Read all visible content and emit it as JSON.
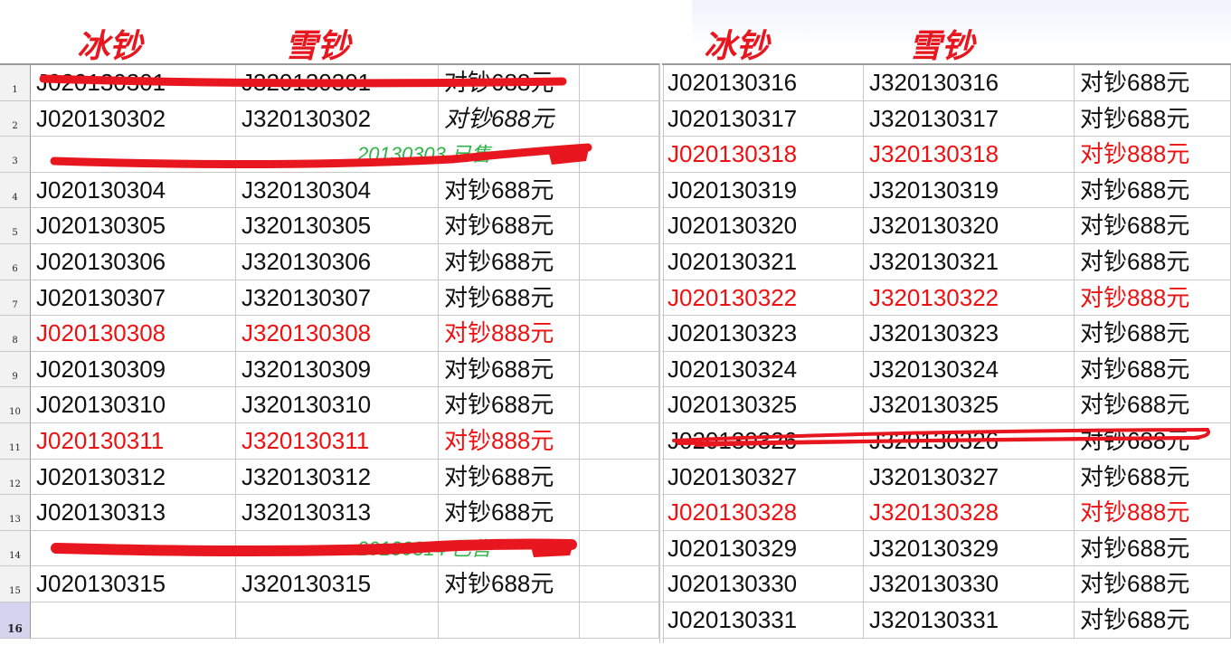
{
  "headers": {
    "left_col_a": "冰钞",
    "left_col_b": "雪钞",
    "right_col_a": "冰钞",
    "right_col_b": "雪钞"
  },
  "colors": {
    "highlight": "#ee1111",
    "note": "#2fb24a",
    "strike": "#e8161e",
    "grid": "#c8c8c8"
  },
  "left": {
    "rows": [
      {
        "num": "1",
        "a": "J020130301",
        "b": "J320130301",
        "c": "对钞688元",
        "struck": true
      },
      {
        "num": "2",
        "a": "J020130302",
        "b": "J320130302",
        "c": "对钞688元",
        "italic_c": true
      },
      {
        "num": "3",
        "a": "",
        "b": "",
        "c": "",
        "note": "20130303 已售",
        "struck": true
      },
      {
        "num": "4",
        "a": "J020130304",
        "b": "J320130304",
        "c": "对钞688元"
      },
      {
        "num": "5",
        "a": "J020130305",
        "b": "J320130305",
        "c": "对钞688元"
      },
      {
        "num": "6",
        "a": "J020130306",
        "b": "J320130306",
        "c": "对钞688元"
      },
      {
        "num": "7",
        "a": "J020130307",
        "b": "J320130307",
        "c": "对钞688元"
      },
      {
        "num": "8",
        "a": "J020130308",
        "b": "J320130308",
        "c": "对钞888元",
        "red": true
      },
      {
        "num": "9",
        "a": "J020130309",
        "b": "J320130309",
        "c": "对钞688元"
      },
      {
        "num": "10",
        "a": "J020130310",
        "b": "J320130310",
        "c": "对钞688元"
      },
      {
        "num": "11",
        "a": "J020130311",
        "b": "J320130311",
        "c": "对钞888元",
        "red": true
      },
      {
        "num": "12",
        "a": "J020130312",
        "b": "J320130312",
        "c": "对钞688元"
      },
      {
        "num": "13",
        "a": "J020130313",
        "b": "J320130313",
        "c": "对钞688元"
      },
      {
        "num": "14",
        "a": "",
        "b": "",
        "c": "",
        "note": "20130314 已售",
        "struck": true
      },
      {
        "num": "15",
        "a": "J020130315",
        "b": "J320130315",
        "c": "对钞688元"
      },
      {
        "num": "16",
        "a": "",
        "b": "",
        "c": "",
        "selected": true
      }
    ]
  },
  "right": {
    "rows": [
      {
        "a": "J020130316",
        "b": "J320130316",
        "c": "对钞688元"
      },
      {
        "a": "J020130317",
        "b": "J320130317",
        "c": "对钞688元"
      },
      {
        "a": "J020130318",
        "b": "J320130318",
        "c": "对钞888元",
        "red": true
      },
      {
        "a": "J020130319",
        "b": "J320130319",
        "c": "对钞688元"
      },
      {
        "a": "J020130320",
        "b": "J320130320",
        "c": "对钞688元"
      },
      {
        "a": "J020130321",
        "b": "J320130321",
        "c": "对钞688元"
      },
      {
        "a": "J020130322",
        "b": "J320130322",
        "c": "对钞888元",
        "red": true
      },
      {
        "a": "J020130323",
        "b": "J320130323",
        "c": "对钞688元"
      },
      {
        "a": "J020130324",
        "b": "J320130324",
        "c": "对钞688元"
      },
      {
        "a": "J020130325",
        "b": "J320130325",
        "c": "对钞688元"
      },
      {
        "a": "J020130326",
        "b": "J320130326",
        "c": "对钞688元",
        "struck": true
      },
      {
        "a": "J020130327",
        "b": "J320130327",
        "c": "对钞688元"
      },
      {
        "a": "J020130328",
        "b": "J320130328",
        "c": "对钞888元",
        "red": true
      },
      {
        "a": "J020130329",
        "b": "J320130329",
        "c": "对钞688元"
      },
      {
        "a": "J020130330",
        "b": "J320130330",
        "c": "对钞688元"
      },
      {
        "a": "J020130331",
        "b": "J320130331",
        "c": "对钞688元"
      }
    ]
  }
}
